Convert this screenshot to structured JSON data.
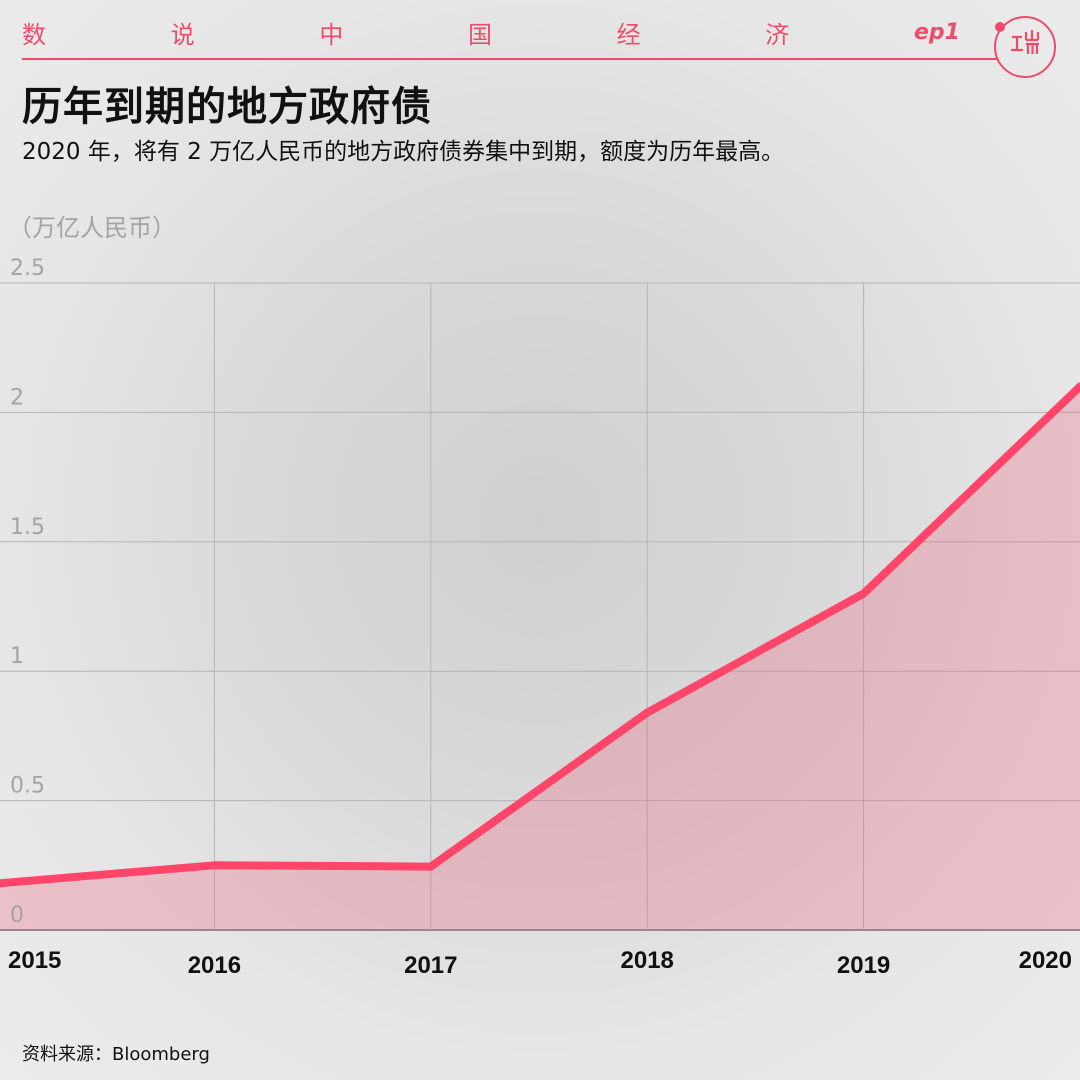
{
  "header": {
    "series_chars": [
      "数",
      "说",
      "中",
      "国",
      "经",
      "济"
    ],
    "episode": "ep1",
    "brand_color": "#ee4d6a"
  },
  "title": "历年到期的地方政府债",
  "subtitle": "2020 年，将有 2 万亿人民币的地方政府债券集中到期，额度为历年最高。",
  "source": "资料来源：Bloomberg",
  "chart_data": {
    "type": "area",
    "unit_label": "（万亿人民币）",
    "x": [
      "2015",
      "2016",
      "2017",
      "2018",
      "2019",
      "2020"
    ],
    "series": [
      {
        "values": [
          0.18,
          0.25,
          0.245,
          0.84,
          1.3,
          2.1
        ],
        "color": "#ff4569",
        "fill": "rgba(240,90,120,0.28)"
      }
    ],
    "yticks": [
      "0",
      "0.5",
      "1",
      "1.5",
      "2",
      "2.5"
    ],
    "ylim": [
      0,
      2.5
    ],
    "grid": true,
    "legend": "none"
  }
}
